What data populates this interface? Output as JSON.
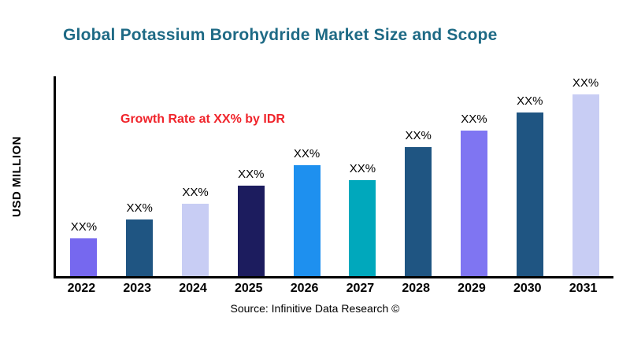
{
  "chart_data": {
    "type": "bar",
    "title": "Global Potassium Borohydride Market Size and Scope",
    "title_color": "#1e6a85",
    "ylabel": "USD MILLION",
    "xlabel": "",
    "categories": [
      "2022",
      "2023",
      "2024",
      "2025",
      "2026",
      "2027",
      "2028",
      "2029",
      "2030",
      "2031"
    ],
    "values": [
      21,
      31,
      40,
      50,
      61,
      53,
      71,
      80,
      90,
      100
    ],
    "ylim": [
      0,
      110
    ],
    "bar_labels": [
      "XX%",
      "XX%",
      "XX%",
      "XX%",
      "XX%",
      "XX%",
      "XX%",
      "XX%",
      "XX%",
      "XX%"
    ],
    "colors": [
      "#7668ef",
      "#1f5582",
      "#c8cdf4",
      "#1c1c5e",
      "#1e90ef",
      "#00a8bc",
      "#1f5582",
      "#7f75f2",
      "#1f5582",
      "#c8cdf4"
    ],
    "annotation": {
      "text": "Growth Rate at XX% by IDR",
      "color": "#f0242b"
    },
    "axis_color": "#000000",
    "grid": false,
    "legend": "none"
  },
  "footer": {
    "source": "Source: Infinitive Data Research ©"
  }
}
